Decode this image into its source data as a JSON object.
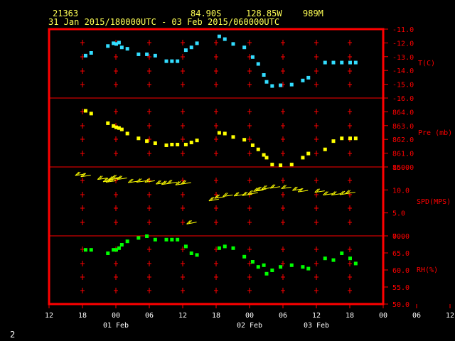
{
  "header": {
    "station": "21363",
    "lat": "84.90S",
    "lon": "128.85W",
    "pressure_level": "989M",
    "time_range": "31 Jan 2015/180000UTC - 03 Feb 2015/060000UTC"
  },
  "footer": {
    "page": "2"
  },
  "colors": {
    "frame": "#ff0000",
    "text_x": "#ffffff",
    "text_y": "#ff0000",
    "header": "#ffff55",
    "temp": "#33ddff",
    "pres": "#ffff00",
    "wind": "#ffff00",
    "rh": "#00ff00"
  },
  "chart_data": {
    "type": "scatter",
    "x_axis": {
      "ticks": [
        "12",
        "18",
        "00",
        "06",
        "12",
        "18",
        "00",
        "06",
        "12",
        "18",
        "00",
        "06",
        "12"
      ],
      "day_labels": [
        "01 Feb",
        "02 Feb",
        "03 Feb"
      ]
    },
    "panels": [
      {
        "key": "temp",
        "label": "T(C)",
        "ylim": [
          -16,
          -11
        ],
        "ticks": [
          "-11.0",
          "-12.0",
          "-13.0",
          "-14.0",
          "-15.0",
          "-16.0"
        ],
        "x": [
          18.5,
          19.5,
          22.5,
          23.5,
          24,
          24.5,
          25,
          26,
          28,
          29.5,
          31,
          33,
          34,
          35,
          36.5,
          37.5,
          38.5,
          42.5,
          43.5,
          45,
          47,
          48.5,
          49.5,
          50.5,
          51,
          52,
          53.5,
          55.5,
          57.5,
          58.5,
          61.5,
          63,
          64.5,
          66,
          67
        ],
        "values": [
          -12.9,
          -12.7,
          -12.2,
          -12.0,
          -12.05,
          -11.95,
          -12.3,
          -12.4,
          -12.8,
          -12.8,
          -12.9,
          -13.3,
          -13.3,
          -13.3,
          -12.5,
          -12.3,
          -12.0,
          -11.5,
          -11.7,
          -12.05,
          -12.3,
          -13.0,
          -13.5,
          -14.3,
          -14.8,
          -15.1,
          -15.05,
          -15.0,
          -14.7,
          -14.5,
          -13.4,
          -13.4,
          -13.4,
          -13.4,
          -13.4
        ]
      },
      {
        "key": "pres",
        "label": "Pre (mb)",
        "ylim": [
          860,
          865
        ],
        "ticks": [
          "864.0",
          "863.0",
          "862.0",
          "861.0",
          "860.0"
        ],
        "x": [
          18.5,
          19.5,
          22.5,
          23.5,
          24,
          24.5,
          25,
          26,
          28,
          29.5,
          31,
          33,
          34,
          35,
          36.5,
          37.5,
          38.5,
          42.5,
          43.5,
          45,
          47,
          48.5,
          49.5,
          50.5,
          51,
          52,
          53.5,
          55.5,
          57.5,
          58.5,
          61.5,
          63,
          64.5,
          66,
          67
        ],
        "values": [
          864.1,
          863.9,
          863.2,
          863.0,
          862.9,
          862.85,
          862.75,
          862.45,
          862.1,
          861.9,
          861.75,
          861.6,
          861.65,
          861.65,
          861.65,
          861.8,
          861.95,
          862.5,
          862.45,
          862.2,
          862.0,
          861.6,
          861.3,
          860.9,
          860.7,
          860.2,
          860.15,
          860.2,
          860.7,
          861.0,
          861.3,
          861.9,
          862.1,
          862.1,
          862.1
        ]
      },
      {
        "key": "wind",
        "label": "SPD(MPS)",
        "ylim": [
          0,
          15
        ],
        "ticks": [
          "15.0",
          "10.0",
          "5.0",
          "0.0"
        ],
        "x": [
          18.5,
          19.5,
          22.5,
          23.5,
          24,
          24.5,
          25,
          26,
          28,
          29.5,
          31,
          33,
          34,
          35,
          36.5,
          37.5,
          38.5,
          42.5,
          43.5,
          45,
          47,
          48.5,
          49.5,
          50.5,
          51,
          52,
          53.5,
          55.5,
          57.5,
          58.5,
          61.5,
          63,
          64.5,
          66,
          67
        ],
        "values": [
          13.5,
          13.2,
          12.6,
          12.1,
          12.0,
          12.5,
          12.8,
          12.6,
          11.9,
          12.0,
          12.0,
          11.6,
          11.5,
          11.7,
          11.4,
          11.6,
          3.0,
          8.0,
          8.5,
          8.9,
          9.0,
          9.1,
          9.4,
          10.0,
          10.2,
          10.5,
          10.7,
          10.6,
          10.2,
          9.9,
          9.8,
          9.2,
          9.2,
          9.3,
          9.5
        ],
        "dir_dx": [
          -1,
          -1,
          -1,
          -1,
          -1,
          -1,
          -1,
          -1,
          -1,
          -1,
          -1,
          -1,
          -1,
          -1,
          -1,
          -1,
          -1,
          -1,
          -1,
          -1,
          -1,
          -1,
          -1,
          -1,
          -1,
          -1,
          -1,
          -1,
          -1,
          -1,
          -1,
          -1,
          -1,
          -1,
          -1
        ],
        "dir_dy": [
          0.35,
          0.3,
          0.3,
          0.3,
          0.3,
          0.3,
          0.3,
          0.3,
          0.3,
          0.3,
          0.3,
          0.3,
          0.3,
          0.3,
          0.3,
          0.3,
          0.4,
          0.35,
          0.3,
          0.3,
          0.3,
          0.3,
          0.3,
          0.3,
          0.3,
          0.3,
          0.3,
          0.3,
          0.3,
          0.3,
          0.3,
          0.3,
          0.3,
          0.3,
          0.3
        ]
      },
      {
        "key": "rh",
        "label": "RH(%)",
        "ylim": [
          50,
          70
        ],
        "ticks": [
          "70.0",
          "65.0",
          "60.0",
          "55.0",
          "50.0"
        ],
        "x": [
          18.5,
          19.5,
          22.5,
          23.5,
          24,
          24.5,
          25,
          26,
          28,
          29.5,
          31,
          33,
          34,
          35,
          36.5,
          37.5,
          38.5,
          42.5,
          43.5,
          45,
          47,
          48.5,
          49.5,
          50.5,
          51,
          52,
          53.5,
          55.5,
          57.5,
          58.5,
          61.5,
          63,
          64.5,
          66,
          67
        ],
        "values": [
          66,
          66,
          65,
          66,
          66,
          66.5,
          67.5,
          68.5,
          69.5,
          70,
          69,
          69,
          69,
          69,
          67,
          65,
          64.5,
          66.5,
          67,
          66.5,
          64,
          62.5,
          61,
          61.5,
          59,
          60,
          61,
          61.5,
          61,
          60.5,
          63.5,
          63,
          65,
          63.5,
          62
        ]
      }
    ]
  }
}
